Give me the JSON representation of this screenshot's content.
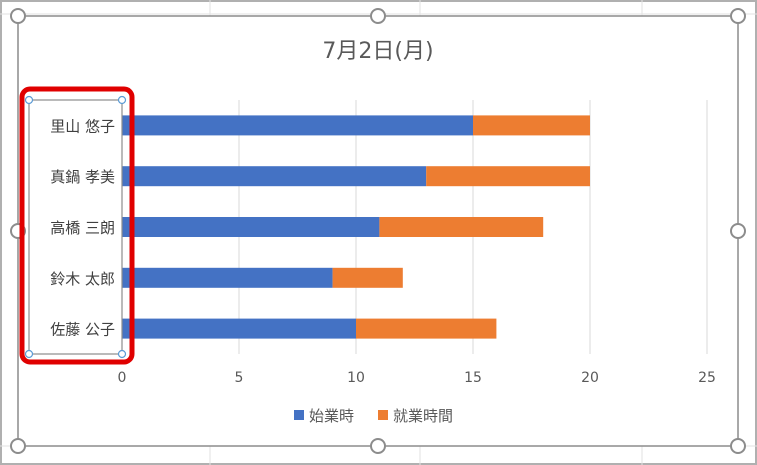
{
  "colors": {
    "series1": "#4472c4",
    "series2": "#ed7d31",
    "highlight": "#e00000"
  },
  "chart_data": {
    "type": "bar",
    "orientation": "horizontal",
    "stacked": true,
    "title": "7月2日(月)",
    "categories": [
      "里山 悠子",
      "真鍋 孝美",
      "高橋 三朗",
      "鈴木 太郎",
      "佐藤 公子"
    ],
    "series": [
      {
        "name": "始業時",
        "values": [
          15,
          13,
          11,
          9,
          10
        ]
      },
      {
        "name": "就業時間",
        "values": [
          5,
          7,
          7,
          3,
          6
        ]
      }
    ],
    "xlim": [
      0,
      25
    ],
    "xticks": [
      "0",
      "5",
      "10",
      "15",
      "20",
      "25"
    ],
    "grid": true,
    "legend": "bottom"
  }
}
